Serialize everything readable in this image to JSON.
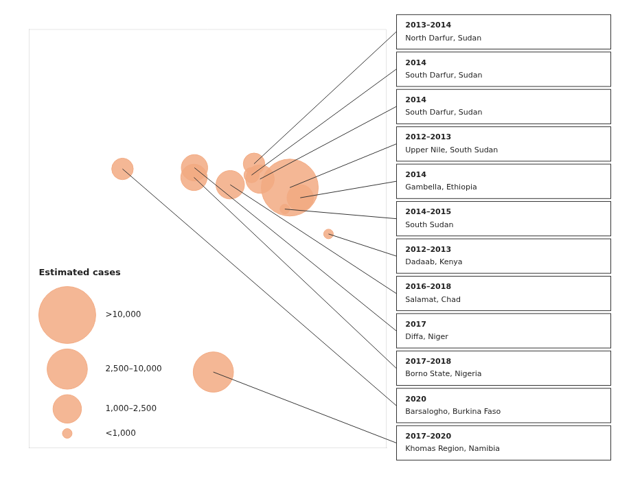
{
  "chart_data": {
    "type": "bubble",
    "x": [
      25.3,
      24.8,
      26.5,
      32.5,
      34.6,
      31.5,
      40.3,
      20.5,
      13.3,
      13.2,
      -1.2,
      17.1
    ],
    "y": [
      14.2,
      12.2,
      11.5,
      10.0,
      8.2,
      6.2,
      1.8,
      10.5,
      13.5,
      11.8,
      13.3,
      -22.6
    ],
    "sizes": [
      400,
      200,
      700,
      2800,
      600,
      80,
      80,
      700,
      600,
      600,
      400,
      1400
    ],
    "annotations": [
      {
        "year": "2013–2014",
        "place": "North Darfur, Sudan"
      },
      {
        "year": "2014",
        "place": "South Darfur, Sudan"
      },
      {
        "year": "2014",
        "place": "South Darfur, Sudan"
      },
      {
        "year": "2012–2013",
        "place": "Upper Nile, South Sudan"
      },
      {
        "year": "2014",
        "place": "Gambella, Ethiopia"
      },
      {
        "year": "2014–2015",
        "place": "South Sudan"
      },
      {
        "year": "2012–2013",
        "place": "Dadaab, Kenya"
      },
      {
        "year": "2016–2018",
        "place": "Salamat, Chad"
      },
      {
        "year": "2017",
        "place": "Diffa, Niger"
      },
      {
        "year": "2017–2018",
        "place": "Borno State, Nigeria"
      },
      {
        "year": "2020",
        "place": "Barsalogho, Burkina Faso"
      },
      {
        "year": "2017–2020",
        "place": "Khomas Region, Namibia"
      }
    ],
    "color": "#F2AA82",
    "xlim": [
      -20,
      52
    ],
    "ylim": [
      -36,
      38
    ],
    "grid": false,
    "tick_labels": false,
    "size_legend": {
      "title": "Estimated cases",
      "labels": [
        ">10,000",
        "2,500–10,000",
        "1,000–2,500",
        "<1,000"
      ],
      "sizes": [
        2800,
        1400,
        700,
        80
      ]
    }
  }
}
